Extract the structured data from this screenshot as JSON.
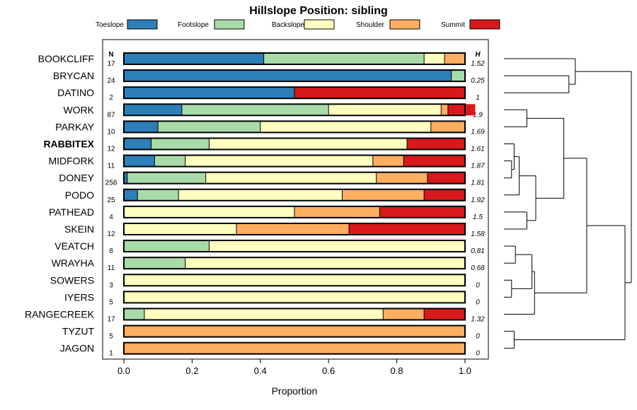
{
  "chart_data": {
    "type": "bar",
    "stacked": true,
    "orientation": "horizontal",
    "title": "Hillslope Position: sibling",
    "xlabel": "Proportion",
    "xlim": [
      0,
      1
    ],
    "x_ticks": [
      0.0,
      0.2,
      0.4,
      0.6,
      0.8,
      1.0
    ],
    "x_tick_labels": [
      "0.0",
      "0.2",
      "0.4",
      "0.6",
      "0.8",
      "1.0"
    ],
    "n_header": "N",
    "h_header": "H",
    "highlighted_site": "RABBITEX",
    "legend": [
      {
        "name": "Toeslope",
        "color": "#2c7fb8"
      },
      {
        "name": "Footslope",
        "color": "#a8dba8"
      },
      {
        "name": "Backslope",
        "color": "#ffffbf"
      },
      {
        "name": "Shoulder",
        "color": "#fdae61"
      },
      {
        "name": "Summit",
        "color": "#d7191c"
      }
    ],
    "categories": [
      "BOOKCLIFF",
      "BRYCAN",
      "DATINO",
      "WORK",
      "PARKAY",
      "RABBITEX",
      "MIDFORK",
      "DONEY",
      "PODO",
      "PATHEAD",
      "SKEIN",
      "VEATCH",
      "WRAYHA",
      "SOWERS",
      "IYERS",
      "RANGECREEK",
      "TYZUT",
      "JAGON"
    ],
    "n": [
      "17",
      "24",
      "2",
      "87",
      "10",
      "12",
      "11",
      "258",
      "25",
      "4",
      "12",
      "8",
      "11",
      "3",
      "5",
      "17",
      "5",
      "1"
    ],
    "h": [
      "1.52",
      "0.25",
      "1",
      "1.9",
      "1.69",
      "1.61",
      "1.87",
      "1.81",
      "1.92",
      "1.5",
      "1.58",
      "0.81",
      "0.68",
      "0",
      "0",
      "1.32",
      "0",
      "0"
    ],
    "series": [
      {
        "name": "Toeslope",
        "values": [
          0.41,
          0.96,
          0.5,
          0.17,
          0.1,
          0.08,
          0.09,
          0.01,
          0.04,
          0,
          0,
          0,
          0,
          0,
          0,
          0,
          0,
          0
        ]
      },
      {
        "name": "Footslope",
        "values": [
          0.47,
          0.04,
          0,
          0.43,
          0.3,
          0.17,
          0.09,
          0.23,
          0.12,
          0,
          0,
          0.25,
          0.18,
          0,
          0,
          0.06,
          0,
          0
        ]
      },
      {
        "name": "Backslope",
        "values": [
          0.06,
          0,
          0,
          0.33,
          0.5,
          0.58,
          0.55,
          0.5,
          0.48,
          0.5,
          0.33,
          0.75,
          0.82,
          1,
          1,
          0.7,
          0,
          0
        ]
      },
      {
        "name": "Shoulder",
        "values": [
          0.06,
          0,
          0,
          0.02,
          0.1,
          0,
          0.09,
          0.15,
          0.24,
          0.25,
          0.33,
          0,
          0,
          0,
          0,
          0.12,
          1,
          1
        ]
      },
      {
        "name": "Summit",
        "values": [
          0,
          0,
          0.5,
          0.08,
          0,
          0.17,
          0.18,
          0.11,
          0.12,
          0.25,
          0.34,
          0,
          0,
          0,
          0,
          0.12,
          0,
          0
        ]
      }
    ],
    "dendrogram": {
      "leaves": [
        "BOOKCLIFF",
        "BRYCAN",
        "DATINO",
        "WORK",
        "PARKAY",
        "RABBITEX",
        "MIDFORK",
        "DONEY",
        "PODO",
        "PATHEAD",
        "SKEIN",
        "VEATCH",
        "WRAYHA",
        "SOWERS",
        "IYERS",
        "RANGECREEK",
        "TYZUT",
        "JAGON"
      ],
      "merges": [
        {
          "a": [
            6
          ],
          "b": [
            7
          ],
          "height": 0.06
        },
        {
          "a": [
            13
          ],
          "b": [
            14
          ],
          "height": 0.06
        },
        {
          "a": [
            16
          ],
          "b": [
            17
          ],
          "height": 0.08
        },
        {
          "a": [
            5
          ],
          "b": [
            6,
            7
          ],
          "height": 0.08
        },
        {
          "a": [
            11
          ],
          "b": [
            12
          ],
          "height": 0.09
        },
        {
          "a": [
            5,
            6,
            7
          ],
          "b": [
            8
          ],
          "height": 0.12
        },
        {
          "a": [
            3
          ],
          "b": [
            4
          ],
          "height": 0.18
        },
        {
          "a": [
            9
          ],
          "b": [
            10
          ],
          "height": 0.18
        },
        {
          "a": [
            11,
            12
          ],
          "b": [
            13,
            14
          ],
          "height": 0.22
        },
        {
          "a": [
            11,
            12,
            13,
            14
          ],
          "b": [
            15
          ],
          "height": 0.24
        },
        {
          "a": [
            5,
            6,
            7,
            8
          ],
          "b": [
            9,
            10
          ],
          "height": 0.25
        },
        {
          "a": [
            1
          ],
          "b": [
            2
          ],
          "height": 0.51
        },
        {
          "a": [
            3,
            4
          ],
          "b": [
            5,
            6,
            7,
            8,
            9,
            10
          ],
          "height": 0.47
        },
        {
          "a": [
            0
          ],
          "b": [
            1,
            2
          ],
          "height": 0.56
        },
        {
          "a": [
            3,
            4,
            5,
            6,
            7,
            8,
            9,
            10
          ],
          "b": [
            11,
            12,
            13,
            14,
            15
          ],
          "height": 0.65
        },
        {
          "a": [
            3,
            4,
            5,
            6,
            7,
            8,
            9,
            10,
            11,
            12,
            13,
            14,
            15
          ],
          "b": [
            16,
            17
          ],
          "height": 0.95
        },
        {
          "a": [
            0,
            1,
            2
          ],
          "b": [
            3,
            4,
            5,
            6,
            7,
            8,
            9,
            10,
            11,
            12,
            13,
            14,
            15,
            16,
            17
          ],
          "height": 1.0
        }
      ]
    }
  }
}
